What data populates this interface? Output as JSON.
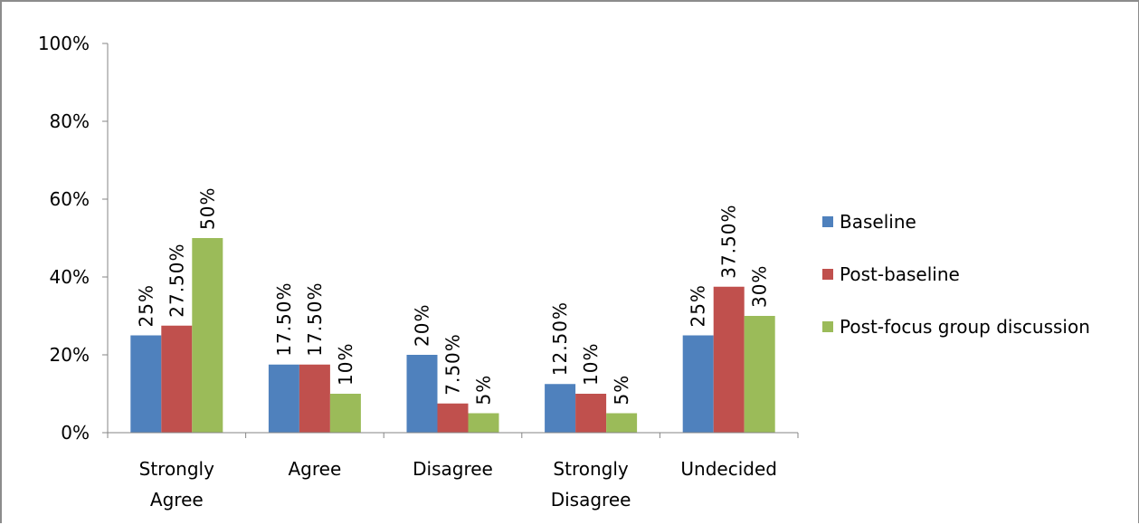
{
  "chart_data": {
    "type": "bar",
    "title": "",
    "xlabel": "",
    "ylabel": "",
    "categories": [
      [
        "Strongly",
        "Agree"
      ],
      [
        "Agree"
      ],
      [
        "Disagree"
      ],
      [
        "Strongly",
        "Disagree"
      ],
      [
        "Undecided"
      ]
    ],
    "series": [
      {
        "name": "Baseline",
        "color": "#4f81bd",
        "values": [
          25,
          17.5,
          20,
          12.5,
          25
        ],
        "labels": [
          "25%",
          "17.50%",
          "20%",
          "12.50%",
          "25%"
        ]
      },
      {
        "name": "Post-baseline",
        "color": "#c0504d",
        "values": [
          27.5,
          17.5,
          7.5,
          10,
          37.5
        ],
        "labels": [
          "27.50%",
          "17.50%",
          "7.50%",
          "10%",
          "37.50%"
        ]
      },
      {
        "name": "Post-focus group discussion",
        "color": "#9bbb59",
        "values": [
          50,
          10,
          5,
          5,
          30
        ],
        "labels": [
          "50%",
          "10%",
          "5%",
          "5%",
          "30%"
        ]
      }
    ],
    "ylim": [
      0,
      100
    ],
    "yticks": [
      0,
      20,
      40,
      60,
      80,
      100
    ],
    "ytick_labels": [
      "0%",
      "20%",
      "40%",
      "60%",
      "80%",
      "100%"
    ],
    "grid": false,
    "legend_position": "right"
  }
}
